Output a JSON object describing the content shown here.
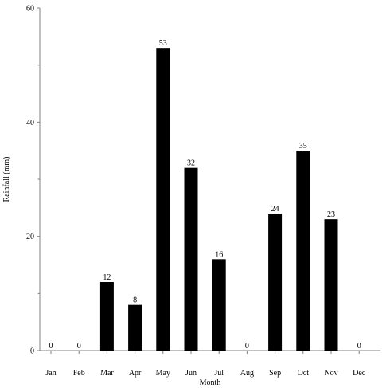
{
  "chart_data": {
    "type": "bar",
    "xlabel": "Month",
    "ylabel": "Rainfall (mm)",
    "categories": [
      "Jan",
      "Feb",
      "Mar",
      "Apr",
      "May",
      "Jun",
      "Jul",
      "Aug",
      "Sep",
      "Oct",
      "Nov",
      "Dec"
    ],
    "values": [
      0,
      0,
      12,
      8,
      53,
      32,
      16,
      0,
      24,
      35,
      23,
      0
    ],
    "data_labels": [
      "0",
      "0",
      "12",
      "8",
      "53",
      "32",
      "16",
      "0",
      "24",
      "35",
      "23",
      "0"
    ],
    "ylim": [
      0,
      60
    ],
    "yticks": [
      0,
      20,
      40,
      60
    ],
    "ytick_labels": [
      "0",
      "20",
      "40",
      "60"
    ],
    "grid": false,
    "bar_color": "#000000",
    "axis_color": "#808080"
  }
}
